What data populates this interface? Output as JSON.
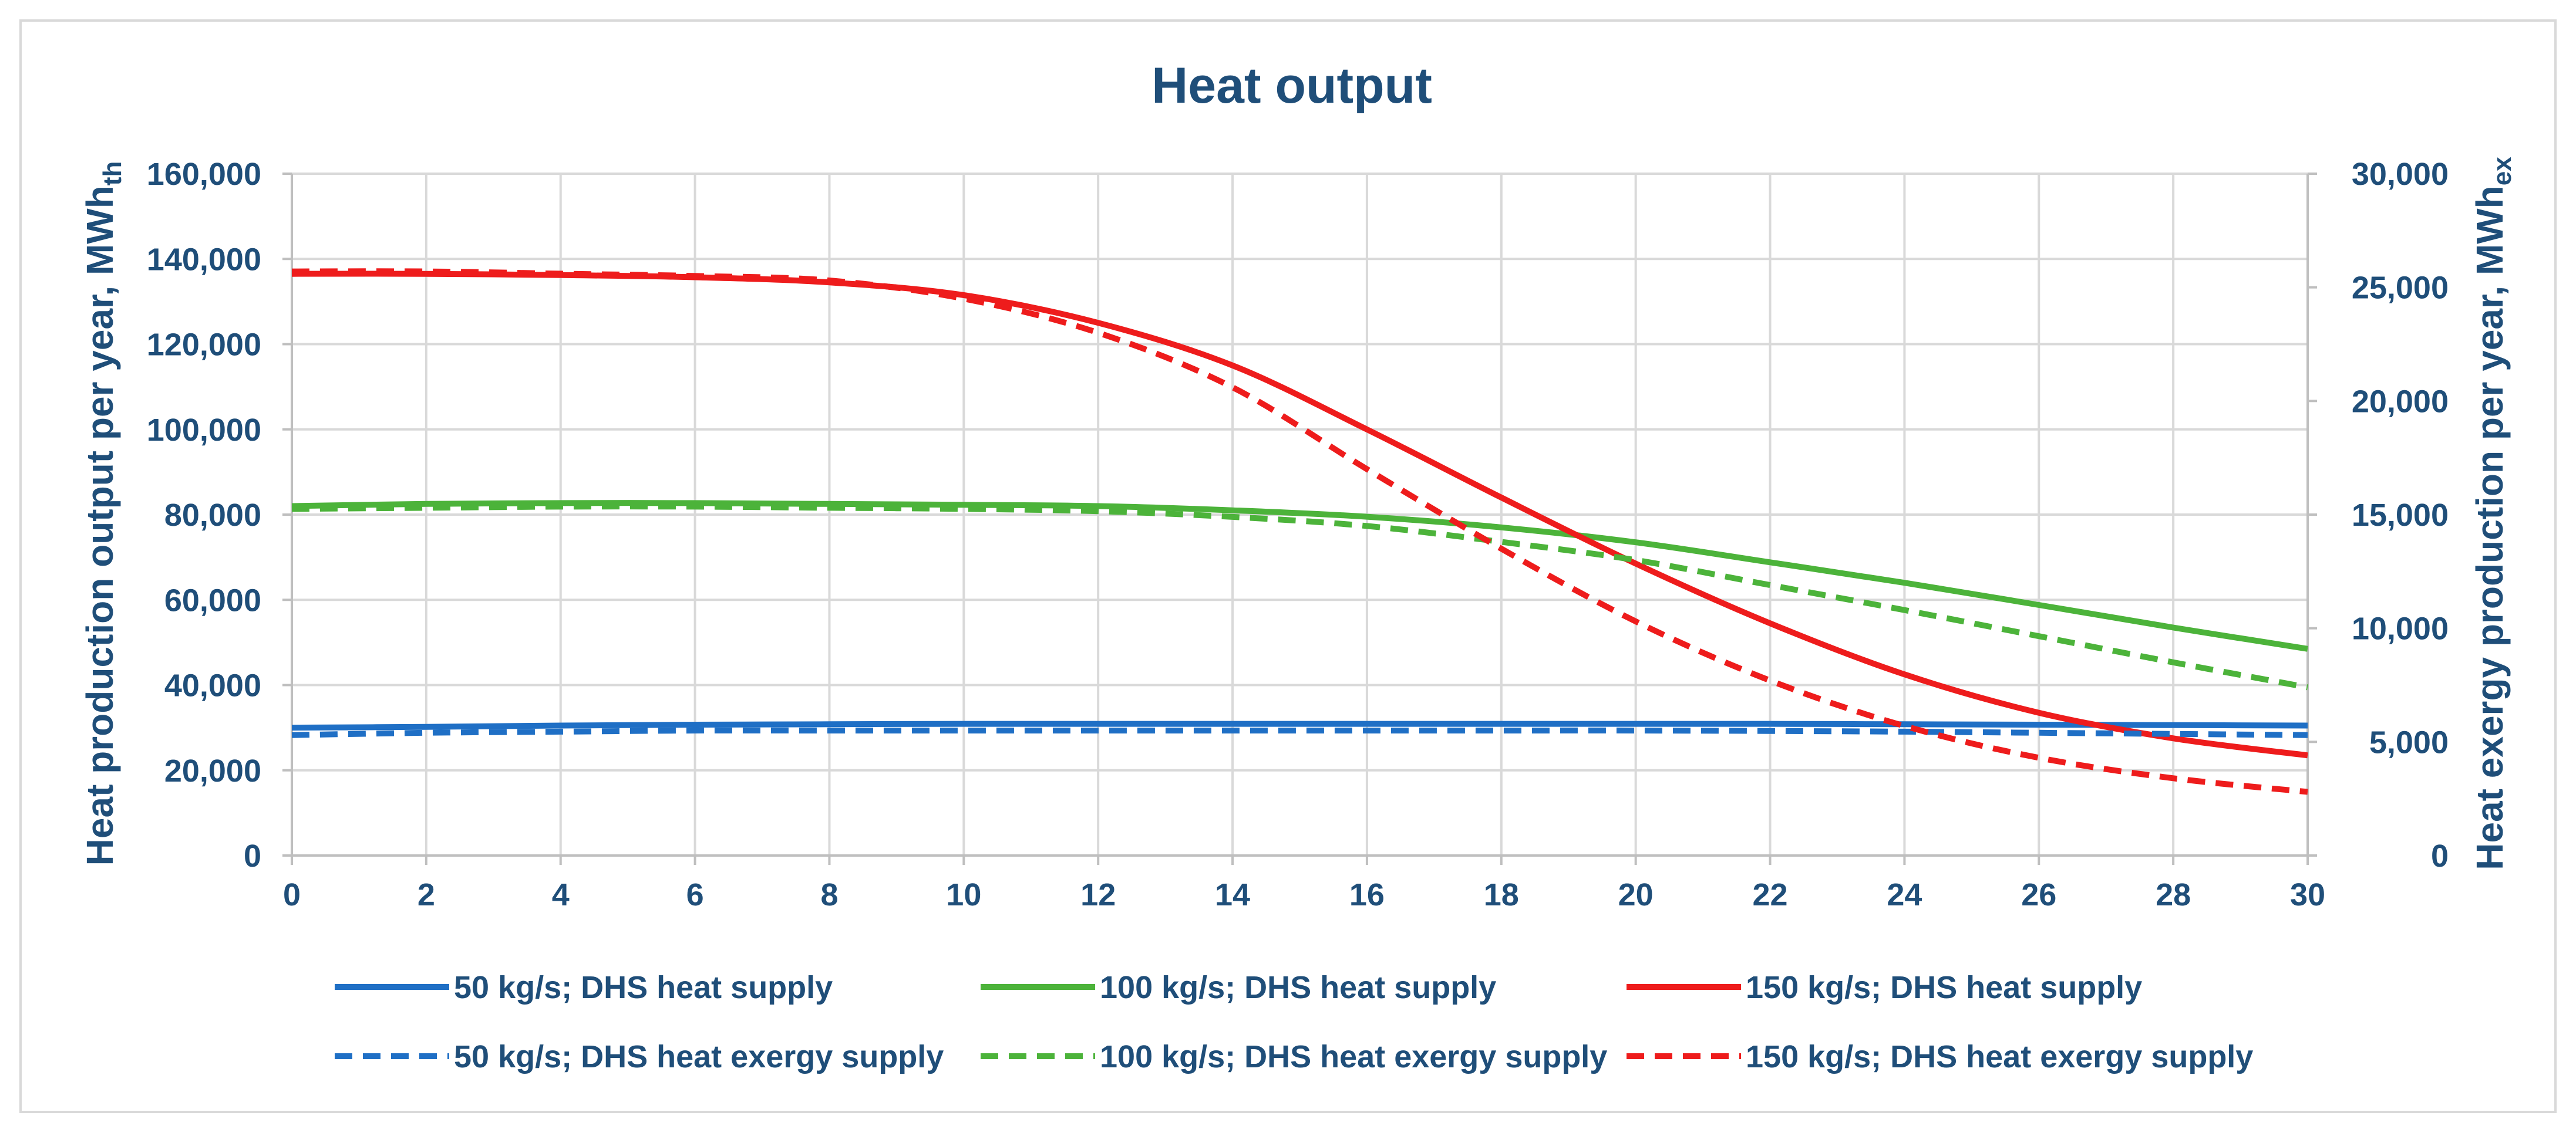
{
  "colors": {
    "text": "#1F4E79",
    "grid": "#D9D9D9",
    "axis": "#BFBFBF",
    "frame": "#D9D9D9",
    "blue": "#1F6FC5",
    "green": "#4CB33A",
    "red": "#EE1C1C"
  },
  "chart_data": {
    "type": "line",
    "title": "Heat output",
    "xlabel": "",
    "ylabel_left": {
      "main": "Heat production output per year, MWh",
      "sub": "th"
    },
    "ylabel_right": {
      "main": "Heat exergy production per year, MWh",
      "sub": "ex"
    },
    "xlim": [
      0,
      30
    ],
    "ylim_left": [
      0,
      160000
    ],
    "ylim_right": [
      0,
      30000
    ],
    "x_ticks": [
      "0",
      "2",
      "4",
      "6",
      "8",
      "10",
      "12",
      "14",
      "16",
      "18",
      "20",
      "22",
      "24",
      "26",
      "28",
      "30"
    ],
    "y_left_ticks": [
      "0",
      "20,000",
      "40,000",
      "60,000",
      "80,000",
      "100,000",
      "120,000",
      "140,000",
      "160,000"
    ],
    "y_right_ticks": [
      "0",
      "5,000",
      "10,000",
      "15,000",
      "20,000",
      "25,000",
      "30,000"
    ],
    "grid": true,
    "legend_position": "bottom",
    "x": [
      0,
      2,
      4,
      6,
      8,
      10,
      12,
      14,
      16,
      18,
      20,
      22,
      24,
      26,
      28,
      30
    ],
    "series": [
      {
        "name": "50 kg/s; DHS heat supply",
        "axis": "left",
        "color": "blue",
        "dash": "solid",
        "values": [
          30000,
          30200,
          30500,
          30700,
          30800,
          30900,
          30900,
          30900,
          30900,
          30900,
          30900,
          30900,
          30800,
          30700,
          30600,
          30500
        ]
      },
      {
        "name": "100 kg/s; DHS heat supply",
        "axis": "left",
        "color": "green",
        "dash": "solid",
        "values": [
          82000,
          82500,
          82700,
          82700,
          82500,
          82300,
          82000,
          81000,
          79500,
          77000,
          73500,
          68800,
          64000,
          58800,
          53500,
          48500
        ]
      },
      {
        "name": "150 kg/s; DHS heat supply",
        "axis": "left",
        "color": "red",
        "dash": "solid",
        "values": [
          136500,
          136500,
          136200,
          135700,
          134500,
          131500,
          125000,
          115000,
          100000,
          84000,
          68500,
          54500,
          42500,
          33500,
          27500,
          23500
        ]
      },
      {
        "name": "50 kg/s; DHS heat exergy supply",
        "axis": "right",
        "color": "blue",
        "dash": "dashed",
        "values": [
          5300,
          5400,
          5450,
          5500,
          5500,
          5500,
          5500,
          5500,
          5500,
          5500,
          5500,
          5480,
          5450,
          5400,
          5350,
          5300
        ]
      },
      {
        "name": "100 kg/s; DHS heat exergy supply",
        "axis": "right",
        "color": "green",
        "dash": "dashed",
        "values": [
          15250,
          15300,
          15350,
          15350,
          15300,
          15250,
          15150,
          14900,
          14500,
          13800,
          13000,
          11900,
          10800,
          9650,
          8500,
          7400
        ]
      },
      {
        "name": "150 kg/s; DHS heat exergy supply",
        "axis": "right",
        "color": "red",
        "dash": "dashed",
        "values": [
          25700,
          25700,
          25600,
          25500,
          25300,
          24500,
          23000,
          20600,
          17000,
          13500,
          10300,
          7700,
          5700,
          4300,
          3400,
          2800
        ]
      }
    ]
  }
}
